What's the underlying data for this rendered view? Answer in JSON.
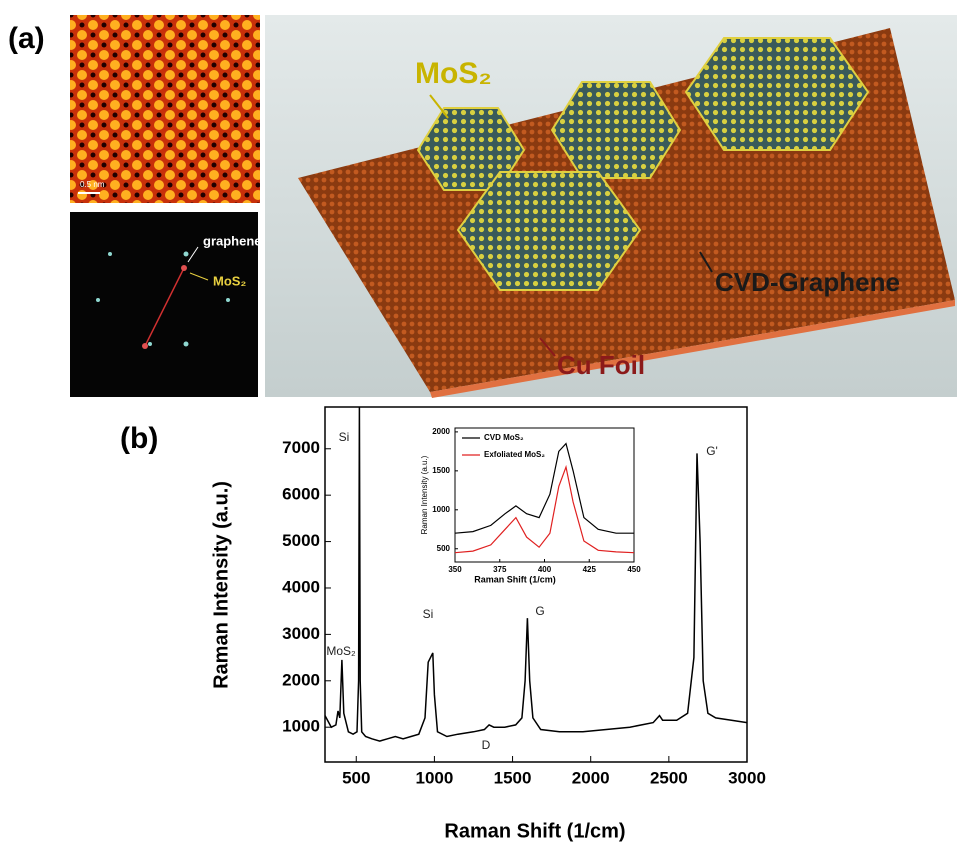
{
  "panel_a": {
    "label": "(a)",
    "scale_bar": "0.5 nm",
    "fft_labels": [
      "graphene",
      "MoS₂"
    ],
    "schematic_labels": [
      "MoS₂",
      "CVD-Graphene",
      "Cu Foil"
    ]
  },
  "chart_data": {
    "type": "line",
    "panel_label": "(b)",
    "x_label": "Raman Shift (1/cm)",
    "y_label": "Raman Intensity (a.u.)",
    "xlim": [
      300,
      3000
    ],
    "xticks": [
      500,
      1000,
      1500,
      2000,
      2500,
      3000
    ],
    "ylim": [
      250,
      7900
    ],
    "yticks": [
      1000,
      2000,
      3000,
      4000,
      5000,
      6000,
      7000
    ],
    "color": "#000000",
    "x": [
      300,
      340,
      370,
      383,
      395,
      408,
      420,
      450,
      480,
      505,
      515,
      520,
      525,
      535,
      560,
      600,
      650,
      700,
      750,
      800,
      850,
      900,
      940,
      960,
      975,
      990,
      1000,
      1020,
      1080,
      1150,
      1250,
      1320,
      1350,
      1380,
      1450,
      1520,
      1560,
      1580,
      1595,
      1610,
      1630,
      1680,
      1800,
      1950,
      2100,
      2250,
      2400,
      2440,
      2460,
      2550,
      2620,
      2660,
      2680,
      2700,
      2720,
      2750,
      2800,
      2900,
      3000
    ],
    "values": [
      1250,
      1000,
      1050,
      1350,
      1200,
      2450,
      1300,
      900,
      850,
      900,
      2000,
      7900,
      2000,
      900,
      800,
      750,
      700,
      750,
      800,
      750,
      800,
      850,
      1200,
      2400,
      2500,
      2600,
      1700,
      900,
      800,
      850,
      900,
      950,
      1050,
      1000,
      1000,
      1050,
      1200,
      2000,
      3350,
      2000,
      1200,
      950,
      900,
      900,
      950,
      1000,
      1100,
      1250,
      1150,
      1150,
      1300,
      2500,
      6900,
      5000,
      2000,
      1300,
      1200,
      1150,
      1100
    ],
    "annotations": [
      "Si",
      "MoS₂",
      "Si",
      "D",
      "G",
      "G'"
    ],
    "inset": {
      "type": "line",
      "x_label": "Raman Shift (1/cm)",
      "y_label": "Raman Intensity (a.u.)",
      "xlim": [
        350,
        450
      ],
      "xticks": [
        350,
        375,
        400,
        425,
        450
      ],
      "ylim": [
        330,
        2050
      ],
      "yticks": [
        500,
        1000,
        1500,
        2000
      ],
      "x": [
        350,
        360,
        370,
        378,
        384,
        390,
        397,
        403,
        408,
        412,
        416,
        422,
        430,
        440,
        450
      ],
      "series": [
        {
          "name": "CVD MoS₂",
          "color": "#000000",
          "values": [
            700,
            720,
            800,
            950,
            1050,
            950,
            900,
            1200,
            1750,
            1850,
            1500,
            900,
            750,
            700,
            700
          ]
        },
        {
          "name": "Exfoliated MoS₂",
          "color": "#e02020",
          "values": [
            450,
            470,
            550,
            750,
            900,
            650,
            520,
            700,
            1300,
            1550,
            1100,
            600,
            480,
            460,
            450
          ]
        }
      ]
    }
  }
}
